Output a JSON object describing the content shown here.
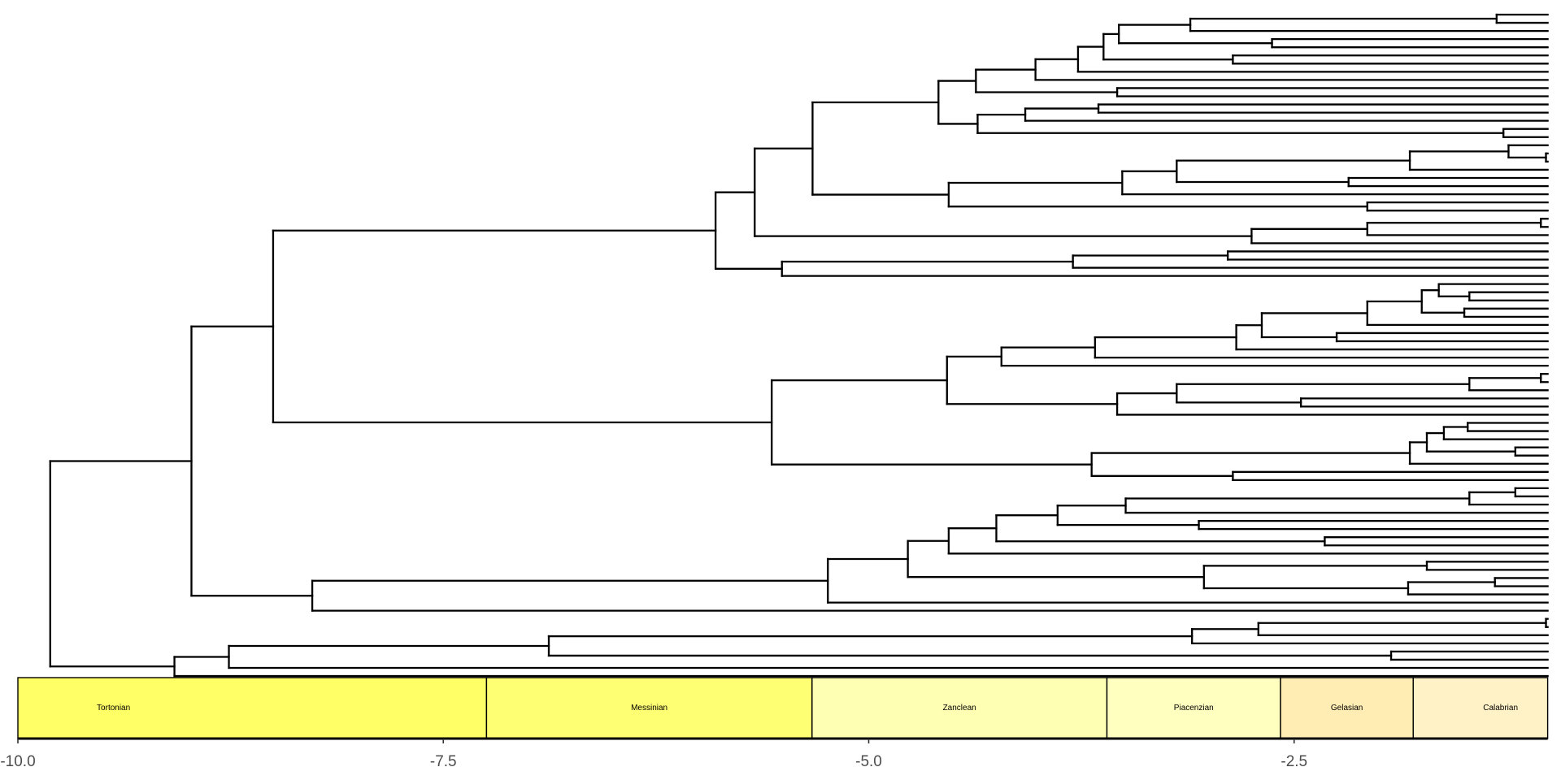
{
  "chart_data": {
    "type": "tree",
    "title": "",
    "xlabel": "",
    "ylabel": "",
    "xlim": [
      -10,
      -1.01
    ],
    "x_ticks": [
      {
        "value": -10,
        "label": "-10.0"
      },
      {
        "value": -7.5,
        "label": "-7.5"
      },
      {
        "value": -5,
        "label": "-5.0"
      },
      {
        "value": -2.5,
        "label": "-2.5"
      }
    ],
    "tip_age": -1.0,
    "tip_count": 82,
    "line_color": "#000000",
    "tree": [
      -9.81,
      [
        -8.98,
        [
          -8.5,
          [
            -5.9,
            [
              -5.67,
              [
                -5.33,
                [
                  -4.59,
                  [
                    -4.37,
                    [
                      -4.02,
                      [
                        -3.77,
                        [
                          -3.62,
                          [
                            -3.53,
                            [
                              -3.11,
                              [
                                -1.31,
                                null,
                                null
                              ],
                              null
                            ],
                            [
                              -2.63,
                              null,
                              null
                            ]
                          ],
                          [
                            -2.86,
                            null,
                            null
                          ]
                        ],
                        null
                      ],
                      null
                    ],
                    [
                      -3.54,
                      null,
                      null
                    ]
                  ],
                  [
                    -4.36,
                    [
                      -4.08,
                      [
                        -3.65,
                        null,
                        null
                      ],
                      null
                    ],
                    [
                      -1.27,
                      null,
                      null
                    ]
                  ]
                ],
                [
                  -4.53,
                  [
                    -3.51,
                    [
                      -3.19,
                      [
                        -1.82,
                        [
                          -1.24,
                          null,
                          [
                            -1.02,
                            null,
                            null
                          ]
                        ],
                        null
                      ],
                      [
                        -2.18,
                        null,
                        null
                      ]
                    ],
                    null
                  ],
                  [
                    -2.07,
                    null,
                    null
                  ]
                ]
              ],
              [
                -2.75,
                [
                  -2.07,
                  [
                    -1.05,
                    null,
                    null
                  ],
                  null
                ],
                null
              ]
            ],
            [
              -5.51,
              [
                -3.8,
                [
                  -2.89,
                  null,
                  null
                ],
                null
              ],
              null
            ]
          ],
          [
            -5.57,
            [
              -4.54,
              [
                -4.22,
                [
                  -3.67,
                  [
                    -2.84,
                    [
                      -2.69,
                      [
                        -2.07,
                        [
                          -1.75,
                          [
                            -1.65,
                            null,
                            [
                              -1.47,
                              null,
                              null
                            ]
                          ],
                          [
                            -1.5,
                            null,
                            null
                          ]
                        ],
                        null
                      ],
                      [
                        -2.25,
                        null,
                        null
                      ]
                    ],
                    null
                  ],
                  null
                ],
                null
              ],
              [
                -3.54,
                [
                  -3.19,
                  [
                    -1.47,
                    [
                      -1.05,
                      null,
                      null
                    ],
                    null
                  ],
                  [
                    -2.46,
                    null,
                    null
                  ]
                ],
                null
              ]
            ],
            [
              -3.69,
              [
                -1.82,
                [
                  -1.72,
                  [
                    -1.62,
                    [
                      -1.48,
                      null,
                      null
                    ],
                    null
                  ],
                  [
                    -1.2,
                    null,
                    null
                  ]
                ],
                null
              ],
              [
                -2.86,
                null,
                null
              ]
            ]
          ]
        ],
        [
          -8.27,
          [
            -5.24,
            [
              -4.77,
              [
                -4.53,
                [
                  -4.25,
                  [
                    -3.89,
                    [
                      -3.49,
                      [
                        -1.47,
                        [
                          -1.2,
                          null,
                          null
                        ],
                        null
                      ],
                      null
                    ],
                    [
                      -3.06,
                      null,
                      null
                    ]
                  ],
                  [
                    -2.32,
                    null,
                    null
                  ]
                ],
                null
              ],
              [
                -3.03,
                [
                  -1.72,
                  null,
                  null
                ],
                [
                  -1.83,
                  [
                    -1.32,
                    null,
                    null
                  ],
                  null
                ]
              ]
            ],
            null
          ],
          null
        ]
      ],
      [
        -9.08,
        [
          -8.76,
          [
            -6.88,
            [
              -3.1,
              [
                -2.71,
                [
                  -1.02,
                  null,
                  null
                ],
                null
              ],
              null
            ],
            [
              -1.93,
              null,
              null
            ]
          ],
          null
        ],
        null
      ]
    ],
    "timescale": [
      {
        "name": "Tortonian",
        "start": -11.63,
        "end": -7.246,
        "color": "#FFFF66"
      },
      {
        "name": "Messinian",
        "start": -7.246,
        "end": -5.333,
        "color": "#FFFF73"
      },
      {
        "name": "Zanclean",
        "start": -5.333,
        "end": -3.6,
        "color": "#FFFFB3"
      },
      {
        "name": "Piacenzian",
        "start": -3.6,
        "end": -2.58,
        "color": "#FFFFBF"
      },
      {
        "name": "Gelasian",
        "start": -2.58,
        "end": -1.8,
        "color": "#FFEDB3"
      },
      {
        "name": "Calabrian",
        "start": -1.8,
        "end": -0.774,
        "color": "#FFF2C7"
      }
    ]
  }
}
